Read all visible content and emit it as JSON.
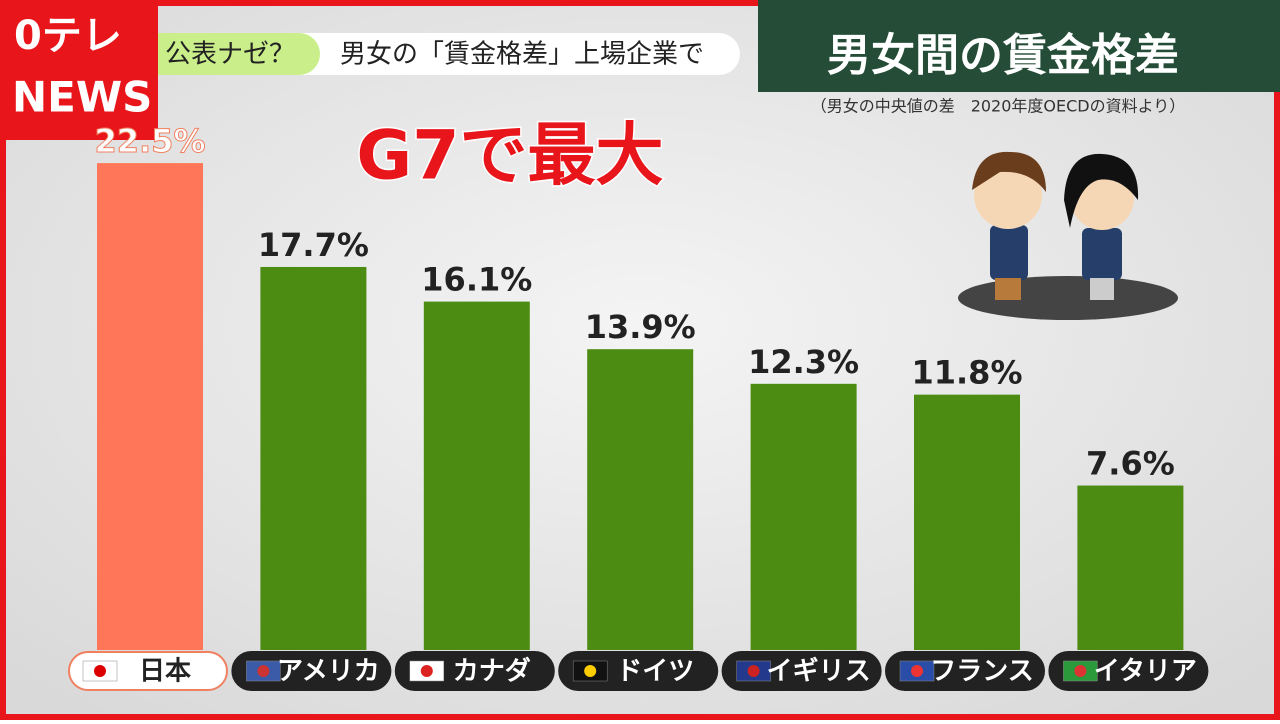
{
  "logo": {
    "line1": "0テレ",
    "line2": "NEWS"
  },
  "ticker": {
    "tag": "公表ナゼ？",
    "headline": "男女の「賃金格差」上場企業で"
  },
  "chart_data": {
    "type": "bar",
    "title": "男女間の賃金格差",
    "subtitle": "（男女の中央値の差　2020年度OECDの資料より）",
    "annotation": "G7で最大",
    "categories": [
      "日本",
      "アメリカ",
      "カナダ",
      "ドイツ",
      "イギリス",
      "フランス",
      "イタリア"
    ],
    "values": [
      22.5,
      17.7,
      16.1,
      13.9,
      12.3,
      11.8,
      7.6
    ],
    "value_labels": [
      "22.5%",
      "17.7%",
      "16.1%",
      "13.9%",
      "12.3%",
      "11.8%",
      "7.6%"
    ],
    "colors": [
      "#ff7758",
      "#4d8c12",
      "#4d8c12",
      "#4d8c12",
      "#4d8c12",
      "#4d8c12",
      "#4d8c12"
    ]
  }
}
